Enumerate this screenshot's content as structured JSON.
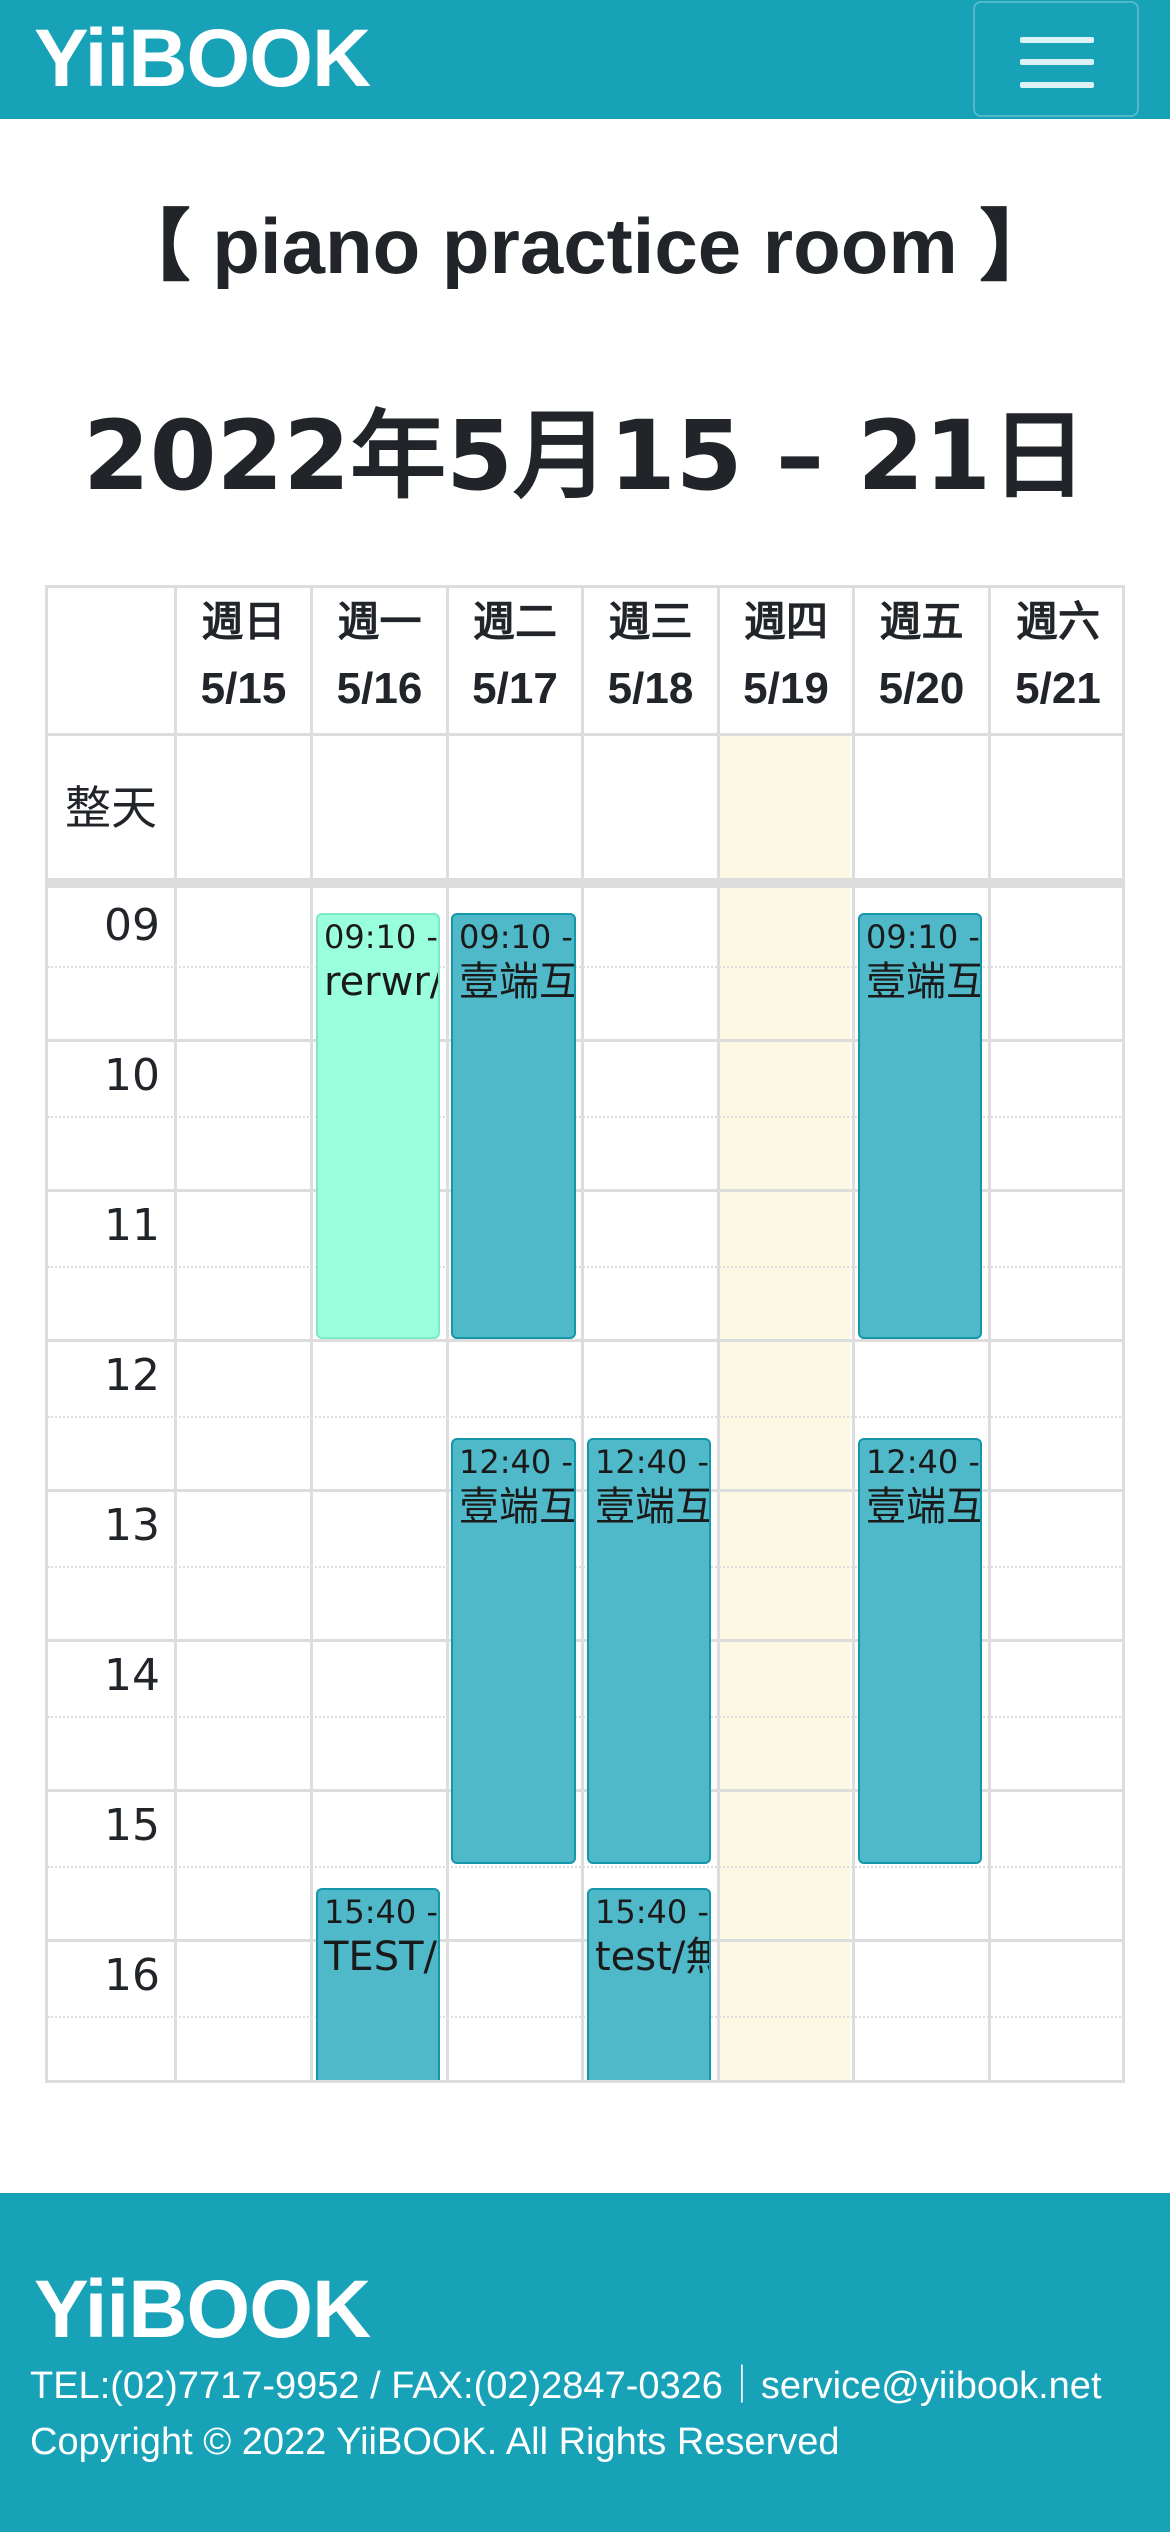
{
  "brand": "YiiBOOK",
  "colors": {
    "brand": "#17a2b8",
    "event": "#4fb9c9",
    "event_alt": "#99ffdd",
    "today": "#fcf8e3",
    "grid": "#dddddd"
  },
  "nav": {
    "menu_icon": "hamburger-icon"
  },
  "room_title": "【 piano practice room 】",
  "week_title": "2022年5月15 – 21日",
  "calendar": {
    "all_day_label": "整天",
    "days": [
      {
        "name": "週日",
        "date": "5/15"
      },
      {
        "name": "週一",
        "date": "5/16"
      },
      {
        "name": "週二",
        "date": "5/17"
      },
      {
        "name": "週三",
        "date": "5/18"
      },
      {
        "name": "週四",
        "date": "5/19"
      },
      {
        "name": "週五",
        "date": "5/20"
      },
      {
        "name": "週六",
        "date": "5/21"
      }
    ],
    "hours": [
      "09",
      "10",
      "11",
      "12",
      "13",
      "14",
      "15",
      "16"
    ],
    "today_date": "5/19",
    "events": [
      {
        "day": "5/16",
        "time": "09:10 -",
        "title": "rerwr/a",
        "color": "#99ffdd"
      },
      {
        "day": "5/17",
        "time": "09:10 -",
        "title": "壹端互",
        "color": "#4fb9c9"
      },
      {
        "day": "5/20",
        "time": "09:10 -",
        "title": "壹端互",
        "color": "#4fb9c9"
      },
      {
        "day": "5/17",
        "time": "12:40 -",
        "title": "壹端互",
        "color": "#4fb9c9"
      },
      {
        "day": "5/18",
        "time": "12:40 -",
        "title": "壹端互",
        "color": "#4fb9c9"
      },
      {
        "day": "5/20",
        "time": "12:40 -",
        "title": "壹端互",
        "color": "#4fb9c9"
      },
      {
        "day": "5/16",
        "time": "15:40 -",
        "title": "TEST/",
        "color": "#4fb9c9"
      },
      {
        "day": "5/18",
        "time": "15:40 -",
        "title": "test/無",
        "color": "#4fb9c9"
      }
    ]
  },
  "footer": {
    "brand": "YiiBOOK",
    "contact": "TEL:(02)7717-9952 / FAX:(02)2847-0326｜service@yiibook.net",
    "copyright": "Copyright © 2022 YiiBOOK. All Rights Reserved"
  }
}
